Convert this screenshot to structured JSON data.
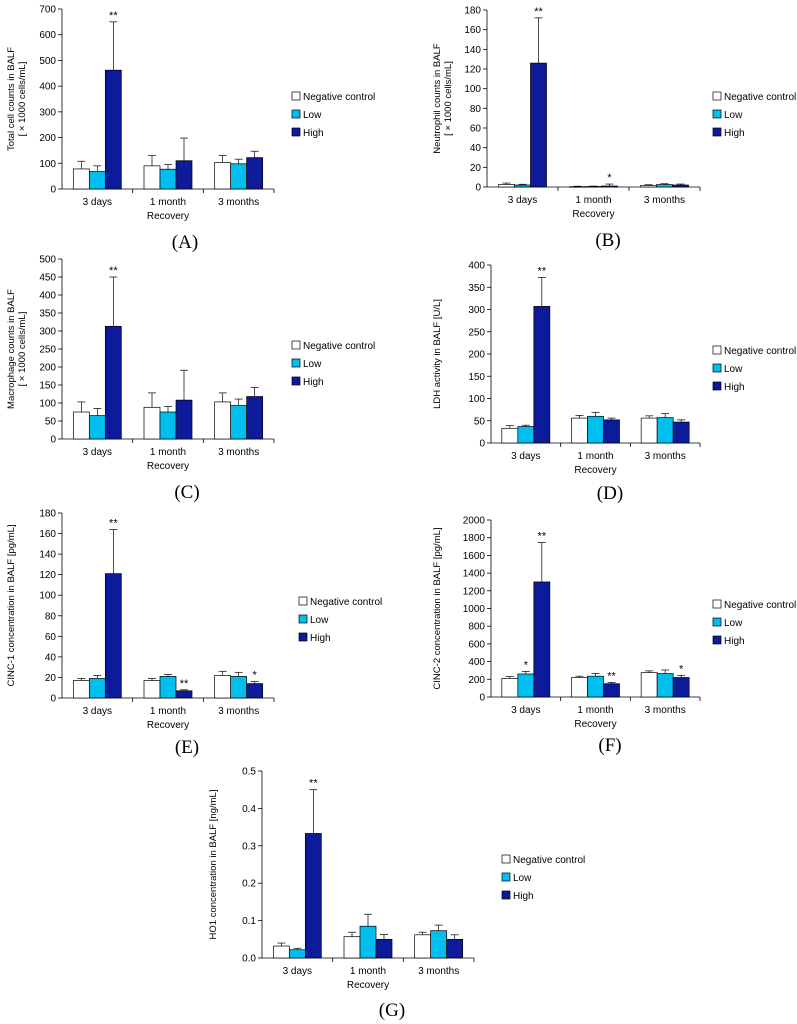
{
  "chart_data": [
    {
      "id": "A",
      "panel_label": "(A)",
      "type": "bar",
      "ylabel": "Total cell counts in BALF",
      "ylabel2": "[ × 1000 cells/mL]",
      "xlabel": "Recovery",
      "categories": [
        "3 days",
        "1 month",
        "3 months"
      ],
      "ylim": [
        0,
        700
      ],
      "yticks": [
        "0",
        "100",
        "200",
        "300",
        "400",
        "500",
        "600",
        "700"
      ],
      "series": [
        {
          "name": "Negative control",
          "color": "#ffffff",
          "values": [
            78,
            90,
            103
          ],
          "errors": [
            30,
            40,
            27
          ]
        },
        {
          "name": "Low",
          "color": "#00bfef",
          "values": [
            68,
            77,
            98
          ],
          "errors": [
            22,
            18,
            18
          ]
        },
        {
          "name": "High",
          "color": "#0d1b9a",
          "values": [
            462,
            110,
            122
          ],
          "errors": [
            188,
            88,
            25
          ]
        }
      ],
      "annotations": [
        [
          "",
          "",
          ""
        ],
        [
          "",
          "",
          ""
        ],
        [
          "**",
          "",
          ""
        ]
      ]
    },
    {
      "id": "B",
      "panel_label": "(B)",
      "type": "bar",
      "ylabel": "Neutrophil counts in BALF",
      "ylabel2": "[ × 1000 cells/mL]",
      "xlabel": "Recovery",
      "categories": [
        "3 days",
        "1 month",
        "3 months"
      ],
      "ylim": [
        0,
        180
      ],
      "yticks": [
        "0",
        "20",
        "40",
        "60",
        "80",
        "100",
        "120",
        "140",
        "160",
        "180"
      ],
      "series": [
        {
          "name": "Negative control",
          "color": "#ffffff",
          "values": [
            2.5,
            0.3,
            1.5
          ],
          "errors": [
            1.5,
            0.5,
            0.8
          ]
        },
        {
          "name": "Low",
          "color": "#00bfef",
          "values": [
            2,
            0.5,
            2.5
          ],
          "errors": [
            0.8,
            0.4,
            0.8
          ]
        },
        {
          "name": "High",
          "color": "#0d1b9a",
          "values": [
            126,
            1,
            2
          ],
          "errors": [
            46,
            2,
            1
          ]
        }
      ],
      "annotations": [
        [
          "",
          "",
          ""
        ],
        [
          "",
          "",
          ""
        ],
        [
          "**",
          "*",
          ""
        ]
      ]
    },
    {
      "id": "C",
      "panel_label": "(C)",
      "type": "bar",
      "ylabel": "Macrophage counts in BALF",
      "ylabel2": "[ × 1000 cells/mL]",
      "xlabel": "Recovery",
      "categories": [
        "3 days",
        "1 month",
        "3 months"
      ],
      "ylim": [
        0,
        500
      ],
      "yticks": [
        "0",
        "50",
        "100",
        "150",
        "200",
        "250",
        "300",
        "350",
        "400",
        "450",
        "500"
      ],
      "series": [
        {
          "name": "Negative control",
          "color": "#ffffff",
          "values": [
            75,
            88,
            103
          ],
          "errors": [
            28,
            40,
            25
          ]
        },
        {
          "name": "Low",
          "color": "#00bfef",
          "values": [
            65,
            75,
            93
          ],
          "errors": [
            20,
            15,
            18
          ]
        },
        {
          "name": "High",
          "color": "#0d1b9a",
          "values": [
            313,
            108,
            118
          ],
          "errors": [
            137,
            83,
            25
          ]
        }
      ],
      "annotations": [
        [
          "",
          "",
          ""
        ],
        [
          "",
          "",
          ""
        ],
        [
          "**",
          "",
          ""
        ]
      ]
    },
    {
      "id": "D",
      "panel_label": "(D)",
      "type": "bar",
      "ylabel": "LDH activity in BALF [U/L]",
      "ylabel2": "",
      "xlabel": "Recovery",
      "categories": [
        "3 days",
        "1 month",
        "3 months"
      ],
      "ylim": [
        0,
        400
      ],
      "yticks": [
        "0",
        "50",
        "100",
        "150",
        "200",
        "250",
        "300",
        "350",
        "400"
      ],
      "series": [
        {
          "name": "Negative control",
          "color": "#ffffff",
          "values": [
            33,
            56,
            56
          ],
          "errors": [
            6,
            6,
            5
          ]
        },
        {
          "name": "Low",
          "color": "#00bfef",
          "values": [
            37,
            60,
            57
          ],
          "errors": [
            3,
            9,
            9
          ]
        },
        {
          "name": "High",
          "color": "#0d1b9a",
          "values": [
            307,
            52,
            47
          ],
          "errors": [
            65,
            4,
            5
          ]
        }
      ],
      "annotations": [
        [
          "",
          "",
          ""
        ],
        [
          "",
          "",
          ""
        ],
        [
          "**",
          "",
          ""
        ]
      ]
    },
    {
      "id": "E",
      "panel_label": "(E)",
      "type": "bar",
      "ylabel": "CINC-1 concentration in BALF [pg/mL]",
      "ylabel2": "",
      "xlabel": "Recovery",
      "categories": [
        "3 days",
        "1 month",
        "3 months"
      ],
      "ylim": [
        0,
        180
      ],
      "yticks": [
        "0",
        "20",
        "40",
        "60",
        "80",
        "100",
        "120",
        "140",
        "160",
        "180"
      ],
      "series": [
        {
          "name": "Negative control",
          "color": "#ffffff",
          "values": [
            17,
            17,
            22
          ],
          "errors": [
            2,
            2,
            4
          ]
        },
        {
          "name": "Low",
          "color": "#00bfef",
          "values": [
            19,
            21,
            21
          ],
          "errors": [
            3,
            2,
            4
          ]
        },
        {
          "name": "High",
          "color": "#0d1b9a",
          "values": [
            121,
            7,
            14
          ],
          "errors": [
            43,
            1,
            2
          ]
        }
      ],
      "annotations": [
        [
          "",
          "",
          ""
        ],
        [
          "",
          "",
          ""
        ],
        [
          "**",
          "**",
          "*"
        ]
      ]
    },
    {
      "id": "F",
      "panel_label": "(F)",
      "type": "bar",
      "ylabel": "CINC-2 concentration in BALF [pg/mL]",
      "ylabel2": "",
      "xlabel": "Recovery",
      "categories": [
        "3 days",
        "1 month",
        "3 months"
      ],
      "ylim": [
        0,
        2000
      ],
      "yticks": [
        "0",
        "200",
        "400",
        "600",
        "800",
        "1000",
        "1200",
        "1400",
        "1600",
        "1800",
        "2000"
      ],
      "series": [
        {
          "name": "Negative control",
          "color": "#ffffff",
          "values": [
            210,
            220,
            275
          ],
          "errors": [
            20,
            15,
            20
          ]
        },
        {
          "name": "Low",
          "color": "#00bfef",
          "values": [
            260,
            235,
            265
          ],
          "errors": [
            30,
            30,
            40
          ]
        },
        {
          "name": "High",
          "color": "#0d1b9a",
          "values": [
            1300,
            150,
            220
          ],
          "errors": [
            445,
            15,
            25
          ]
        }
      ],
      "annotations": [
        [
          "",
          "",
          ""
        ],
        [
          "*",
          "",
          ""
        ],
        [
          "**",
          "**",
          "*"
        ]
      ]
    },
    {
      "id": "G",
      "panel_label": "(G)",
      "type": "bar",
      "ylabel": "HO1 concentration in BALF [ng/mL]",
      "ylabel2": "",
      "xlabel": "Recovery",
      "categories": [
        "3 days",
        "1 month",
        "3 months"
      ],
      "ylim": [
        0,
        0.5
      ],
      "yticks": [
        "0.0",
        "0.1",
        "0.2",
        "0.3",
        "0.4",
        "0.5"
      ],
      "series": [
        {
          "name": "Negative control",
          "color": "#ffffff",
          "values": [
            0.032,
            0.057,
            0.062
          ],
          "errors": [
            0.008,
            0.012,
            0.007
          ]
        },
        {
          "name": "Low",
          "color": "#00bfef",
          "values": [
            0.022,
            0.085,
            0.073
          ],
          "errors": [
            0.004,
            0.032,
            0.015
          ]
        },
        {
          "name": "High",
          "color": "#0d1b9a",
          "values": [
            0.333,
            0.05,
            0.05
          ],
          "errors": [
            0.117,
            0.013,
            0.012
          ]
        }
      ],
      "annotations": [
        [
          "",
          "",
          ""
        ],
        [
          "",
          "",
          ""
        ],
        [
          "**",
          "",
          ""
        ]
      ]
    }
  ]
}
